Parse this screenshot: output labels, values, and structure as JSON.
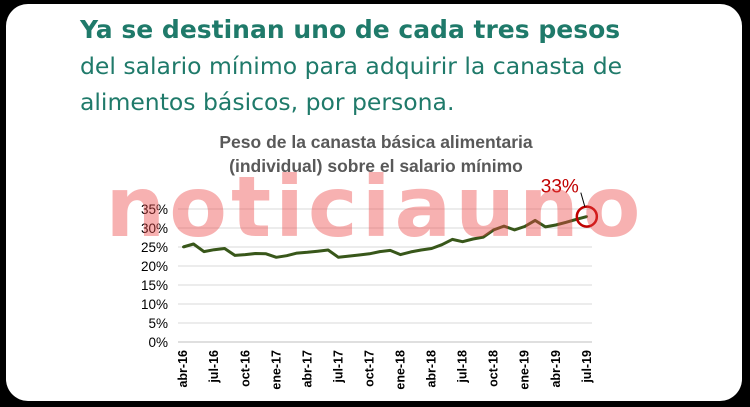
{
  "headline": {
    "bold": "Ya se destinan uno de cada tres pesos",
    "rest": "del salario mínimo para adquirir la canasta de alimentos básicos, por persona."
  },
  "watermark": "noticiauno",
  "colors": {
    "headline": "#1f7a6a",
    "line": "#38571a",
    "callout": "#c00000",
    "watermark": "#eb4646"
  },
  "chart_data": {
    "type": "line",
    "title": "Peso de la canasta básica alimentaria (individual) sobre el salario mínimo",
    "title_lines": [
      "Peso de la canasta básica alimentaria",
      "(individual) sobre el salario mínimo"
    ],
    "ylim": [
      0,
      35
    ],
    "yticks": [
      "0%",
      "5%",
      "10%",
      "15%",
      "20%",
      "25%",
      "30%",
      "35%"
    ],
    "grid": true,
    "xticks": [
      "abr-16",
      "jul-16",
      "oct-16",
      "ene-17",
      "abr-17",
      "jul-17",
      "oct-17",
      "ene-18",
      "abr-18",
      "jul-18",
      "oct-18",
      "ene-19",
      "abr-19",
      "jul-19"
    ],
    "x": [
      "abr-16",
      "may-16",
      "jun-16",
      "jul-16",
      "ago-16",
      "sep-16",
      "oct-16",
      "nov-16",
      "dic-16",
      "ene-17",
      "feb-17",
      "mar-17",
      "abr-17",
      "may-17",
      "jun-17",
      "jul-17",
      "ago-17",
      "sep-17",
      "oct-17",
      "nov-17",
      "dic-17",
      "ene-18",
      "feb-18",
      "mar-18",
      "abr-18",
      "may-18",
      "jun-18",
      "jul-18",
      "ago-18",
      "sep-18",
      "oct-18",
      "nov-18",
      "dic-18",
      "ene-19",
      "feb-19",
      "mar-19",
      "abr-19",
      "may-19",
      "jun-19",
      "jul-19"
    ],
    "values": [
      25.0,
      25.8,
      23.8,
      24.3,
      24.6,
      22.8,
      23.0,
      23.3,
      23.2,
      22.3,
      22.7,
      23.4,
      23.6,
      23.9,
      24.2,
      22.3,
      22.6,
      22.9,
      23.2,
      23.8,
      24.1,
      23.0,
      23.7,
      24.2,
      24.6,
      25.6,
      27.0,
      26.4,
      27.1,
      27.6,
      29.5,
      30.5,
      29.5,
      30.4,
      32.0,
      30.3,
      30.8,
      31.5,
      32.3,
      33.0
    ],
    "annotation": "33%"
  }
}
